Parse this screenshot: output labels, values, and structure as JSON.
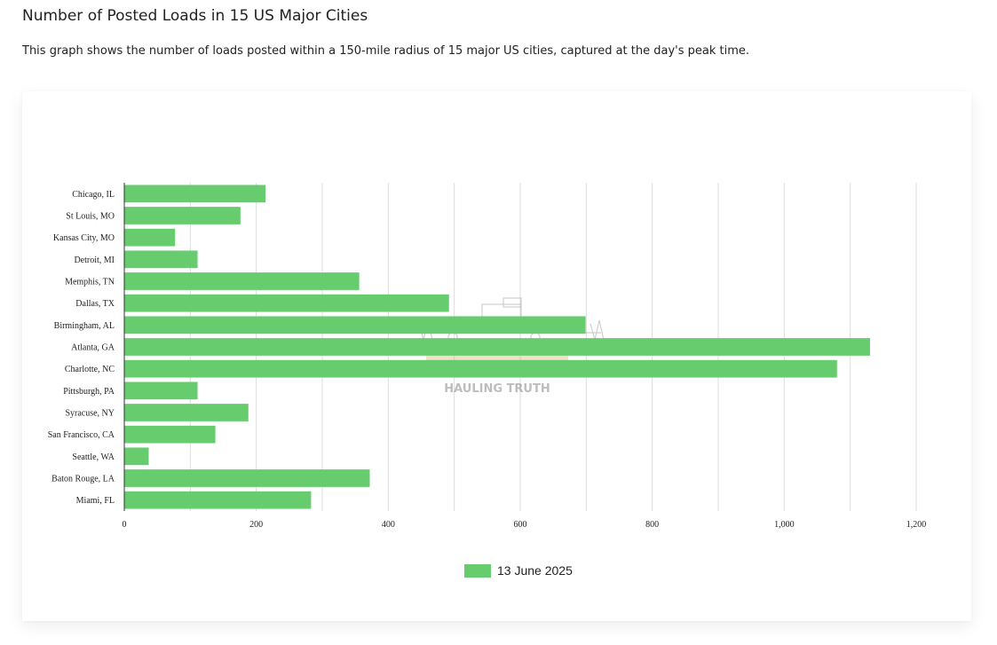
{
  "page": {
    "title": "Number of Posted Loads in 15 US Major Cities",
    "description": "This graph shows the number of loads posted within a 150-mile radius of 15 major US cities, captured at the day's peak time."
  },
  "watermark": {
    "text": "HAULING TRUTH"
  },
  "colors": {
    "bar": "#66cc6e",
    "grid": "#dddddd",
    "axis": "#333333"
  },
  "chart_data": {
    "type": "bar",
    "orientation": "horizontal",
    "categories": [
      "Chicago, IL",
      "St Louis, MO",
      "Kansas City, MO",
      "Detroit, MI",
      "Memphis, TN",
      "Dallas, TX",
      "Birmingham, AL",
      "Atlanta, GA",
      "Charlotte, NC",
      "Pittsburgh, PA",
      "Syracuse, NY",
      "San Francisco, CA",
      "Seattle, WA",
      "Baton Rouge, LA",
      "Miami, FL"
    ],
    "series": [
      {
        "name": "13 June 2025",
        "values": [
          214,
          176,
          77,
          111,
          356,
          492,
          699,
          1130,
          1080,
          111,
          188,
          138,
          37,
          372,
          283
        ]
      }
    ],
    "xlim": [
      0,
      1200
    ],
    "xticks": [
      0,
      200,
      400,
      600,
      800,
      1000,
      1200
    ],
    "xtick_labels": [
      "0",
      "200",
      "400",
      "600",
      "800",
      "1,000",
      "1,200"
    ],
    "grid": true,
    "legend_position": "bottom"
  }
}
